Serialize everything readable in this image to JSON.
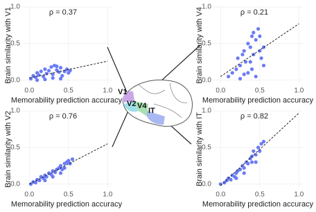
{
  "chart_data": [
    {
      "type": "scatter",
      "annotation": "ρ = 0.37",
      "xlabel": "Memorability prediction accuracy",
      "ylabel": "Brain similarity with V1",
      "color": "#6b7cf6",
      "grid": true,
      "xlim": [
        -0.1,
        1.05
      ],
      "ylim": [
        -0.05,
        1.0
      ],
      "xticks": [
        {
          "value": 0,
          "label": "0.0"
        },
        0.5,
        {
          "value": 1,
          "label": "1.0"
        }
      ],
      "yticks": [
        {
          "value": 0,
          "label": "0.0"
        },
        0.5,
        {
          "value": 1,
          "label": "1.0"
        }
      ],
      "x": [
        0.02,
        0.05,
        0.08,
        0.1,
        0.12,
        0.15,
        0.18,
        0.2,
        0.22,
        0.25,
        0.28,
        0.3,
        0.32,
        0.35,
        0.38,
        0.4,
        0.42,
        0.45,
        0.48,
        0.5,
        0.52,
        0.3,
        0.2,
        0.4,
        0.1,
        0.35
      ],
      "values": [
        0.02,
        0.06,
        0.04,
        0.1,
        0.07,
        0.12,
        0.05,
        0.15,
        0.09,
        0.13,
        0.18,
        0.08,
        0.2,
        0.14,
        0.11,
        0.17,
        0.06,
        0.12,
        0.15,
        0.1,
        0.13,
        0.03,
        0.01,
        0.02,
        0.0,
        0.19
      ],
      "fit_x": [
        0,
        1
      ],
      "fit_y": [
        0.03,
        0.26
      ]
    },
    {
      "type": "scatter",
      "annotation": "ρ = 0.21",
      "xlabel": "Memorability prediction accuracy",
      "ylabel": "Brain similarity with V4",
      "color": "#6b7cf6",
      "grid": true,
      "xlim": [
        -0.1,
        1.05
      ],
      "ylim": [
        -0.05,
        1.0
      ],
      "xticks": [
        {
          "value": 0,
          "label": "0.0"
        },
        0.5,
        {
          "value": 1,
          "label": "1.0"
        }
      ],
      "yticks": [
        {
          "value": 0,
          "label": "0.0"
        },
        0.5,
        {
          "value": 1,
          "label": "1.0"
        }
      ],
      "x": [
        0.1,
        0.15,
        0.2,
        0.22,
        0.25,
        0.28,
        0.3,
        0.32,
        0.35,
        0.38,
        0.4,
        0.42,
        0.45,
        0.48,
        0.5,
        0.52,
        0.55,
        0.35,
        0.4,
        0.45,
        0.3,
        0.5,
        0.25,
        0.42,
        0.38,
        0.55
      ],
      "values": [
        0.05,
        0.1,
        0.15,
        0.3,
        0.2,
        0.35,
        0.4,
        0.25,
        0.5,
        0.45,
        0.6,
        0.35,
        0.55,
        0.7,
        0.4,
        0.3,
        0.2,
        0.1,
        0.15,
        0.05,
        0.08,
        0.6,
        0.02,
        0.65,
        0.25,
        0.45
      ],
      "fit_x": [
        0,
        1
      ],
      "fit_y": [
        0.05,
        0.77
      ]
    },
    {
      "type": "scatter",
      "annotation": "ρ = 0.76",
      "xlabel": "Memorability prediction accuracy",
      "ylabel": "Brain similarity with V2",
      "color": "#6b7cf6",
      "grid": true,
      "xlim": [
        -0.1,
        1.05
      ],
      "ylim": [
        -0.05,
        1.0
      ],
      "xticks": [
        {
          "value": 0,
          "label": "0.0"
        },
        0.5,
        {
          "value": 1,
          "label": "1.0"
        }
      ],
      "yticks": [
        {
          "value": 0,
          "label": "0.0"
        },
        0.5,
        {
          "value": 1,
          "label": "1.0"
        }
      ],
      "x": [
        0.02,
        0.05,
        0.08,
        0.1,
        0.13,
        0.15,
        0.18,
        0.2,
        0.22,
        0.25,
        0.28,
        0.3,
        0.33,
        0.35,
        0.38,
        0.4,
        0.42,
        0.45,
        0.48,
        0.5,
        0.52,
        0.55,
        0.3,
        0.4,
        0.2,
        0.45
      ],
      "values": [
        0.0,
        0.03,
        0.02,
        0.06,
        0.05,
        0.1,
        0.08,
        0.12,
        0.1,
        0.15,
        0.13,
        0.18,
        0.16,
        0.2,
        0.22,
        0.25,
        0.2,
        0.28,
        0.3,
        0.32,
        0.28,
        0.34,
        0.1,
        0.15,
        0.05,
        0.22
      ],
      "fit_x": [
        0,
        1
      ],
      "fit_y": [
        0.0,
        0.55
      ]
    },
    {
      "type": "scatter",
      "annotation": "ρ = 0.82",
      "xlabel": "Memorability prediction accuracy",
      "ylabel": "Brain similarity with IT",
      "color": "#6b7cf6",
      "grid": true,
      "xlim": [
        -0.1,
        1.05
      ],
      "ylim": [
        -0.05,
        1.0
      ],
      "xticks": [
        {
          "value": 0,
          "label": "0.0"
        },
        0.5,
        {
          "value": 1,
          "label": "1.0"
        }
      ],
      "yticks": [
        {
          "value": 0,
          "label": "0.0"
        },
        0.5,
        {
          "value": 1,
          "label": "1.0"
        }
      ],
      "x": [
        0.0,
        0.05,
        0.08,
        0.1,
        0.13,
        0.15,
        0.18,
        0.2,
        0.22,
        0.25,
        0.28,
        0.3,
        0.33,
        0.35,
        0.38,
        0.4,
        0.42,
        0.45,
        0.48,
        0.5,
        0.52,
        0.55,
        0.3,
        0.4,
        0.2,
        0.45
      ],
      "values": [
        0.0,
        0.02,
        0.05,
        0.08,
        0.06,
        0.12,
        0.1,
        0.15,
        0.18,
        0.2,
        0.25,
        0.22,
        0.3,
        0.28,
        0.35,
        0.38,
        0.45,
        0.4,
        0.5,
        0.45,
        0.55,
        0.58,
        0.15,
        0.3,
        0.08,
        0.3
      ],
      "fit_x": [
        0,
        1
      ],
      "fit_y": [
        -0.02,
        0.97
      ]
    }
  ],
  "diagram": {
    "labels": [
      "V1",
      "V2",
      "V4",
      "IT"
    ]
  }
}
